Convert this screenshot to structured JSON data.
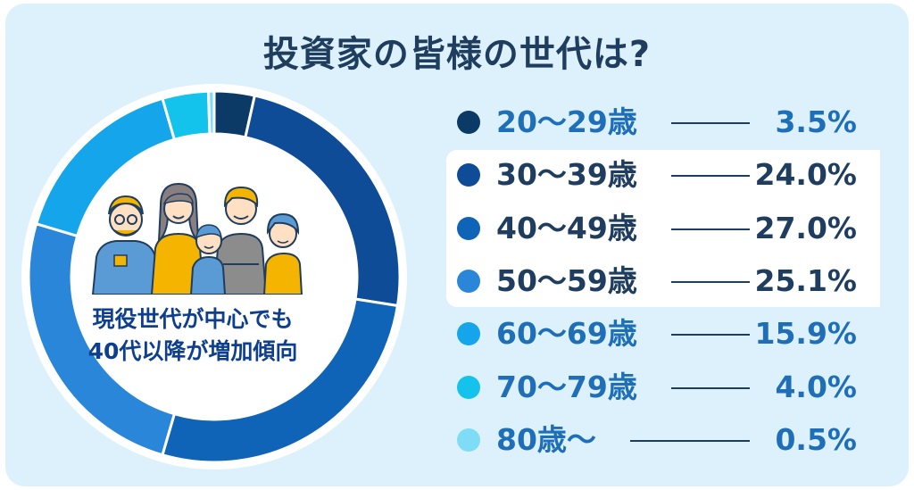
{
  "title": "投資家の皆様の世代は?",
  "caption": {
    "line1": "現役世代が中心でも",
    "line2": "40代以降が増加傾向"
  },
  "colors": {
    "background": "#dcf1fb",
    "title": "#1f3d5e",
    "caption": "#0e3f8f"
  },
  "chart_data": {
    "type": "pie",
    "variant": "donut",
    "categories": [
      "20〜29歳",
      "30〜39歳",
      "40〜49歳",
      "50〜59歳",
      "60〜69歳",
      "70〜79歳",
      "80歳〜"
    ],
    "values": [
      3.5,
      24.0,
      27.0,
      25.1,
      15.9,
      4.0,
      0.5
    ],
    "value_labels": [
      "3.5%",
      "24.0%",
      "27.0%",
      "25.1%",
      "15.9%",
      "4.0%",
      "0.5%"
    ],
    "colors": [
      "#0b3a66",
      "#0e4c97",
      "#0f64b7",
      "#2a86d8",
      "#14a5ea",
      "#13c3ec",
      "#7fdcf7"
    ],
    "label_colors": [
      "#1f6fb8",
      "#1f3d5e",
      "#1f3d5e",
      "#1f3d5e",
      "#1f6fb8",
      "#1f6fb8",
      "#1f6fb8"
    ],
    "legend_position": "right",
    "highlighted": [
      "30〜39歳",
      "40〜49歳",
      "50〜59歳"
    ]
  }
}
